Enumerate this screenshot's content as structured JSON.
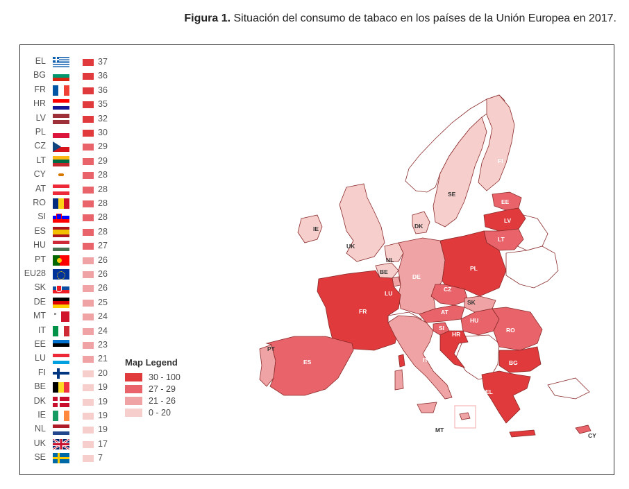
{
  "caption": {
    "bold": "Figura 1.",
    "text": " Situación del consumo de tabaco en los países de la Unión Europea en 2017."
  },
  "colors": {
    "c1": "#e03a3c",
    "c2": "#e8636a",
    "c3": "#efa3a4",
    "c4": "#f6cfcd",
    "nonEU": "#ffffff",
    "border": "#8a2a2a"
  },
  "countries": [
    {
      "code": "EL",
      "value": "37",
      "cat": "c1",
      "flag": "gr"
    },
    {
      "code": "BG",
      "value": "36",
      "cat": "c1",
      "flag": "bg"
    },
    {
      "code": "FR",
      "value": "36",
      "cat": "c1",
      "flag": "fr"
    },
    {
      "code": "HR",
      "value": "35",
      "cat": "c1",
      "flag": "hr"
    },
    {
      "code": "LV",
      "value": "32",
      "cat": "c1",
      "flag": "lv"
    },
    {
      "code": "PL",
      "value": "30",
      "cat": "c1",
      "flag": "pl"
    },
    {
      "code": "CZ",
      "value": "29",
      "cat": "c2",
      "flag": "cz"
    },
    {
      "code": "LT",
      "value": "29",
      "cat": "c2",
      "flag": "lt"
    },
    {
      "code": "CY",
      "value": "28",
      "cat": "c2",
      "flag": "cy"
    },
    {
      "code": "AT",
      "value": "28",
      "cat": "c2",
      "flag": "at"
    },
    {
      "code": "RO",
      "value": "28",
      "cat": "c2",
      "flag": "ro"
    },
    {
      "code": "SI",
      "value": "28",
      "cat": "c2",
      "flag": "si"
    },
    {
      "code": "ES",
      "value": "28",
      "cat": "c2",
      "flag": "es"
    },
    {
      "code": "HU",
      "value": "27",
      "cat": "c2",
      "flag": "hu"
    },
    {
      "code": "PT",
      "value": "26",
      "cat": "c3",
      "flag": "pt"
    },
    {
      "code": "EU28",
      "value": "26",
      "cat": "c3",
      "flag": "eu"
    },
    {
      "code": "SK",
      "value": "26",
      "cat": "c3",
      "flag": "sk"
    },
    {
      "code": "DE",
      "value": "25",
      "cat": "c3",
      "flag": "de"
    },
    {
      "code": "MT",
      "value": "24",
      "cat": "c3",
      "flag": "mt"
    },
    {
      "code": "IT",
      "value": "24",
      "cat": "c3",
      "flag": "it"
    },
    {
      "code": "EE",
      "value": "23",
      "cat": "c3",
      "flag": "ee"
    },
    {
      "code": "LU",
      "value": "21",
      "cat": "c3",
      "flag": "lu"
    },
    {
      "code": "FI",
      "value": "20",
      "cat": "c4",
      "flag": "fi"
    },
    {
      "code": "BE",
      "value": "19",
      "cat": "c4",
      "flag": "be"
    },
    {
      "code": "DK",
      "value": "19",
      "cat": "c4",
      "flag": "dk"
    },
    {
      "code": "IE",
      "value": "19",
      "cat": "c4",
      "flag": "ie"
    },
    {
      "code": "NL",
      "value": "19",
      "cat": "c4",
      "flag": "nl"
    },
    {
      "code": "UK",
      "value": "17",
      "cat": "c4",
      "flag": "uk"
    },
    {
      "code": "SE",
      "value": "7",
      "cat": "c4",
      "flag": "se"
    }
  ],
  "legend": {
    "title": "Map Legend",
    "items": [
      {
        "label": "30 - 100",
        "cat": "c1"
      },
      {
        "label": "27 - 29",
        "cat": "c2"
      },
      {
        "label": "21 - 26",
        "cat": "c3"
      },
      {
        "label": "0 - 20",
        "cat": "c4"
      }
    ]
  },
  "map_labels": [
    "FI",
    "SE",
    "EE",
    "LV",
    "LT",
    "DK",
    "IE",
    "UK",
    "NL",
    "BE",
    "LU",
    "DE",
    "PL",
    "CZ",
    "SK",
    "AT",
    "HU",
    "RO",
    "SI",
    "HR",
    "FR",
    "PT",
    "ES",
    "IT",
    "BG",
    "EL",
    "MT",
    "CY"
  ]
}
